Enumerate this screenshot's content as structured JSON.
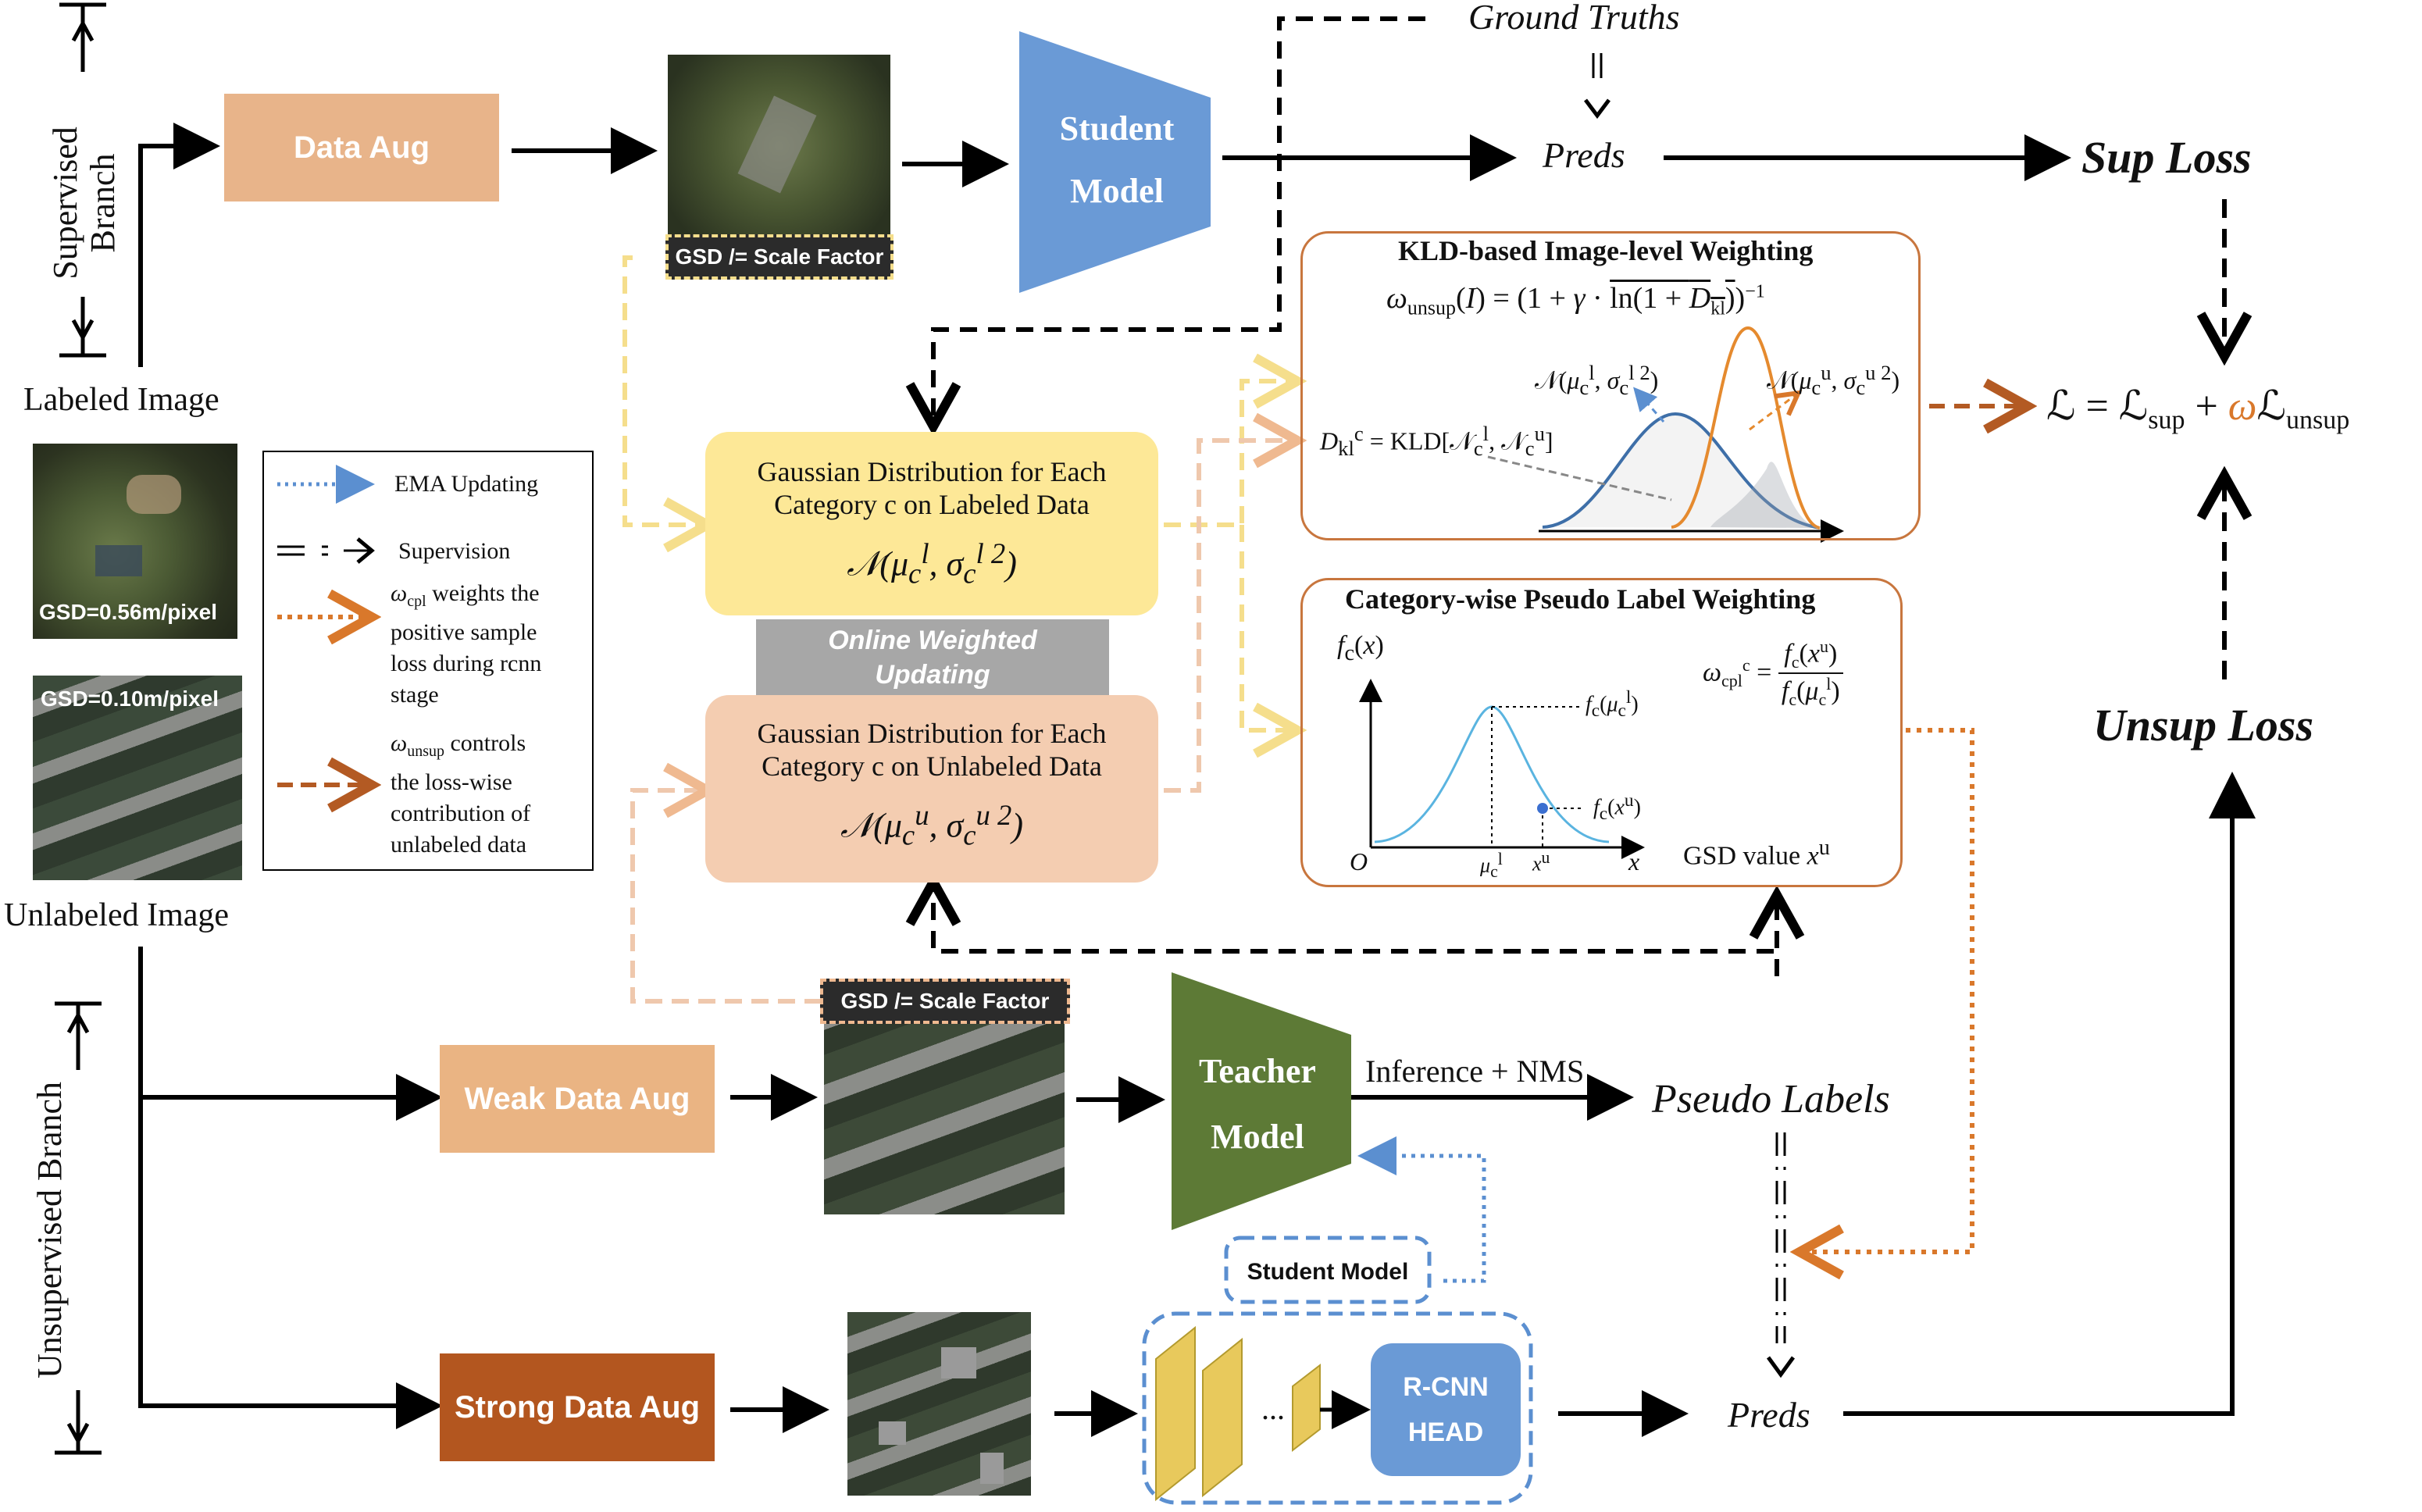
{
  "branches": {
    "supervised": "Supervised Branch",
    "unsupervised": "Unsupervised Branch"
  },
  "images": {
    "labeled_label": "Labeled Image",
    "unlabeled_label": "Unlabeled Image",
    "labeled_gsd": "GSD=0.56m/pixel",
    "unlabeled_gsd": "GSD=0.10m/pixel",
    "scale_tag": "GSD /= Scale Factor"
  },
  "aug": {
    "data_aug": "Data Aug",
    "weak": "Weak Data Aug",
    "strong": "Strong Data Aug"
  },
  "models": {
    "student_line1": "Student",
    "student_line2": "Model",
    "teacher_line1": "Teacher",
    "teacher_line2": "Model",
    "student_small": "Student Model",
    "rcnn_line1": "R-CNN",
    "rcnn_line2": "HEAD",
    "dots": "..."
  },
  "flow": {
    "ground_truths": "Ground Truths",
    "preds_top": "Preds",
    "preds_bottom": "Preds",
    "pseudo_labels": "Pseudo Labels",
    "inference": "Inference + NMS",
    "sup_loss": "Sup Loss",
    "unsup_loss": "Unsup Loss"
  },
  "gaussian": {
    "labeled_line1": "Gaussian Distribution for Each",
    "labeled_line2": "Category c on Labeled Data",
    "unlabeled_line1": "Gaussian Distribution for Each",
    "unlabeled_line2": "Category c on Unlabeled Data",
    "online_line1": "Online Weighted",
    "online_line2": "Updating"
  },
  "kld_panel": {
    "title": "KLD-based Image-level Weighting"
  },
  "cpl_panel": {
    "title": "Category-wise Pseudo Label Weighting",
    "gsd_value": "GSD value"
  },
  "legend": {
    "ema": "EMA Updating",
    "supervision": "Supervision",
    "cpl_desc": [
      "weights the",
      "positive sample",
      "loss during rcnn",
      "stage"
    ],
    "unsup_desc": [
      "controls",
      "the loss-wise",
      "contribution of",
      "unlabeled data"
    ]
  },
  "colors": {
    "data_aug": "#e8b48a",
    "weak_aug": "#eab483",
    "strong_aug": "#b3561f",
    "student": "#6a9ad6",
    "teacher": "#5d7a36",
    "rcnn": "#6a9ad6",
    "gauss_labeled": "#fde897",
    "gauss_unlabeled": "#f4cdb1",
    "online": "#a7a7a7",
    "panel_border": "#c8763e",
    "accent_orange": "#d9782b",
    "ema_blue": "#5b8fd0"
  }
}
